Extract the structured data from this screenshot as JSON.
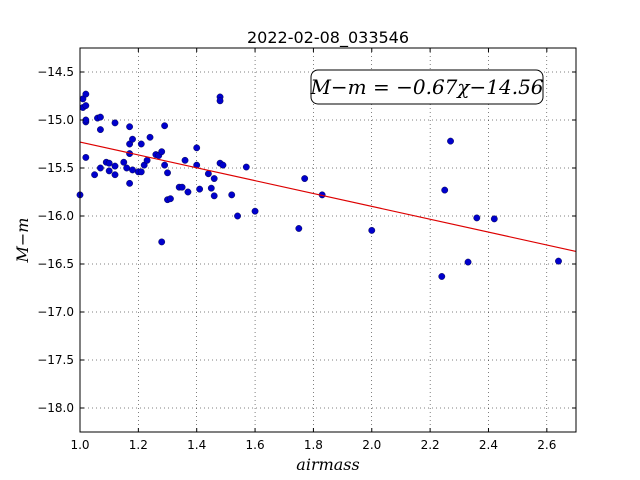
{
  "chart_data": {
    "type": "scatter",
    "title": "2022-02-08_033546",
    "xlabel": "airmass",
    "ylabel": "M−m",
    "xlim": [
      1.0,
      2.7
    ],
    "ylim": [
      -18.25,
      -14.25
    ],
    "y_inverted": true,
    "xticks": [
      1.0,
      1.2,
      1.4,
      1.6,
      1.8,
      2.0,
      2.2,
      2.4,
      2.6
    ],
    "yticks": [
      -14.5,
      -15.0,
      -15.5,
      -16.0,
      -16.5,
      -17.0,
      -17.5,
      -18.0
    ],
    "xtick_labels": [
      "1.0",
      "1.2",
      "1.4",
      "1.6",
      "1.8",
      "2.0",
      "2.2",
      "2.4",
      "2.6"
    ],
    "ytick_labels": [
      "−14.5",
      "−15.0",
      "−15.5",
      "−16.0",
      "−16.5",
      "−17.0",
      "−17.5",
      "−18.0"
    ],
    "grid": true,
    "point_color": "#0000cc",
    "fit_color": "#dd0000",
    "annotation": "M−m = −0.67χ−14.56",
    "fit": {
      "slope": -0.67,
      "intercept": -14.56
    },
    "points": [
      [
        1.0,
        -15.78
      ],
      [
        1.01,
        -14.78
      ],
      [
        1.01,
        -14.87
      ],
      [
        1.02,
        -14.73
      ],
      [
        1.02,
        -14.85
      ],
      [
        1.02,
        -15.02
      ],
      [
        1.02,
        -15.0
      ],
      [
        1.02,
        -15.39
      ],
      [
        1.05,
        -15.57
      ],
      [
        1.06,
        -14.98
      ],
      [
        1.07,
        -14.97
      ],
      [
        1.07,
        -15.1
      ],
      [
        1.07,
        -15.5
      ],
      [
        1.09,
        -15.44
      ],
      [
        1.1,
        -15.45
      ],
      [
        1.1,
        -15.53
      ],
      [
        1.12,
        -15.03
      ],
      [
        1.12,
        -15.48
      ],
      [
        1.12,
        -15.57
      ],
      [
        1.15,
        -15.44
      ],
      [
        1.16,
        -15.5
      ],
      [
        1.17,
        -15.66
      ],
      [
        1.17,
        -15.35
      ],
      [
        1.17,
        -15.07
      ],
      [
        1.17,
        -15.25
      ],
      [
        1.18,
        -15.2
      ],
      [
        1.18,
        -15.52
      ],
      [
        1.2,
        -15.54
      ],
      [
        1.21,
        -15.54
      ],
      [
        1.21,
        -15.25
      ],
      [
        1.22,
        -15.47
      ],
      [
        1.23,
        -15.42
      ],
      [
        1.24,
        -15.18
      ],
      [
        1.26,
        -15.36
      ],
      [
        1.27,
        -15.37
      ],
      [
        1.28,
        -15.33
      ],
      [
        1.28,
        -16.27
      ],
      [
        1.29,
        -15.47
      ],
      [
        1.29,
        -15.06
      ],
      [
        1.3,
        -15.55
      ],
      [
        1.3,
        -15.83
      ],
      [
        1.31,
        -15.82
      ],
      [
        1.34,
        -15.7
      ],
      [
        1.35,
        -15.7
      ],
      [
        1.36,
        -15.42
      ],
      [
        1.37,
        -15.75
      ],
      [
        1.4,
        -15.29
      ],
      [
        1.4,
        -15.47
      ],
      [
        1.41,
        -15.72
      ],
      [
        1.44,
        -15.56
      ],
      [
        1.45,
        -15.71
      ],
      [
        1.46,
        -15.79
      ],
      [
        1.46,
        -15.61
      ],
      [
        1.48,
        -14.76
      ],
      [
        1.48,
        -14.8
      ],
      [
        1.48,
        -15.45
      ],
      [
        1.49,
        -15.47
      ],
      [
        1.52,
        -15.78
      ],
      [
        1.54,
        -16.0
      ],
      [
        1.57,
        -15.49
      ],
      [
        1.6,
        -15.95
      ],
      [
        1.75,
        -16.13
      ],
      [
        1.77,
        -15.61
      ],
      [
        1.83,
        -15.78
      ],
      [
        2.0,
        -16.15
      ],
      [
        2.24,
        -16.63
      ],
      [
        2.25,
        -15.73
      ],
      [
        2.27,
        -15.22
      ],
      [
        2.33,
        -16.48
      ],
      [
        2.36,
        -16.02
      ],
      [
        2.42,
        -16.03
      ],
      [
        2.64,
        -16.47
      ]
    ]
  }
}
